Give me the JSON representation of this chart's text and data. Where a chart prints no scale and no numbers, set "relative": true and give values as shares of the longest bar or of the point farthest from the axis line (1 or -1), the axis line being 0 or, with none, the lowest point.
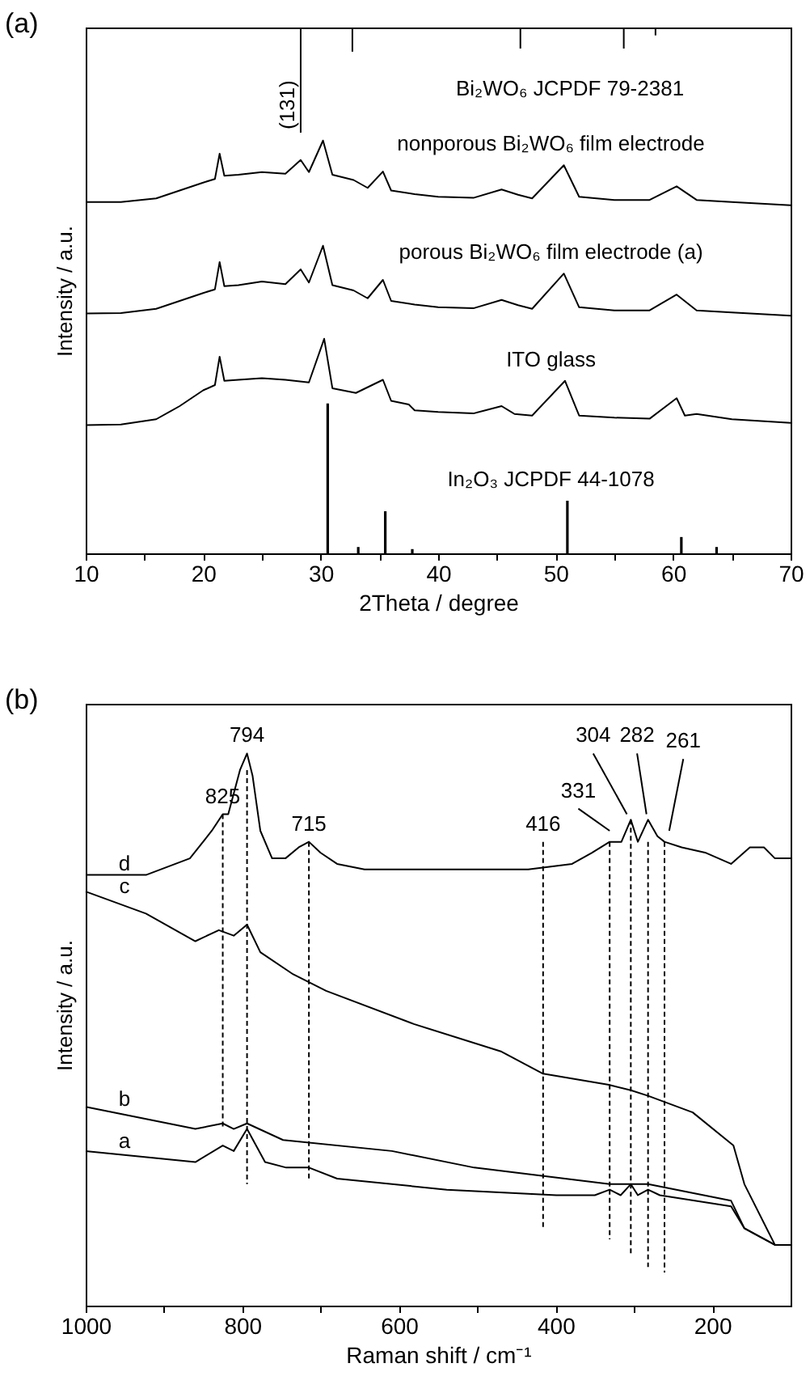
{
  "chart_data": [
    {
      "type": "line",
      "title": "(a)",
      "xlabel": "2Theta / degree",
      "ylabel": "Intensity / a.u.",
      "relative": true,
      "xlim": [
        10,
        70
      ],
      "xticks": [
        10,
        {
          "value": 15,
          "label": null
        },
        20,
        {
          "value": 25,
          "label": null
        },
        30,
        {
          "value": 35,
          "label": null
        },
        40,
        {
          "value": 45,
          "label": null
        },
        50,
        {
          "value": 55,
          "label": null
        },
        60,
        {
          "value": 65,
          "label": null
        },
        70
      ],
      "series": [
        {
          "color": "#000000",
          "x": [
            28.3,
            28.3
          ],
          "values": [
            1,
            0.8
          ]
        },
        {
          "color": "#000000",
          "x": [
            32.7,
            32.7
          ],
          "values": [
            1,
            0.954
          ]
        },
        {
          "color": "#000000",
          "x": [
            47.0,
            47.0
          ],
          "values": [
            1,
            0.96
          ]
        },
        {
          "color": "#000000",
          "x": [
            55.8,
            55.8
          ],
          "values": [
            1,
            0.96
          ]
        },
        {
          "color": "#000000",
          "x": [
            58.5,
            58.5
          ],
          "values": [
            1,
            0.985
          ]
        },
        {
          "name": "nonporous Bi₂WO₆ film electrode",
          "color": "#000000",
          "x": [
            10,
            13,
            16,
            18,
            20,
            21,
            21.4,
            21.8,
            23,
            25,
            27,
            28.3,
            29,
            30.2,
            31,
            32.8,
            34,
            35.3,
            36,
            38,
            40,
            43,
            45.4,
            46.8,
            48,
            50.7,
            52,
            55,
            58,
            60.3,
            62,
            65,
            70
          ],
          "values": [
            0.668,
            0.668,
            0.675,
            0.69,
            0.705,
            0.712,
            0.76,
            0.718,
            0.72,
            0.725,
            0.722,
            0.748,
            0.725,
            0.785,
            0.72,
            0.71,
            0.695,
            0.726,
            0.69,
            0.683,
            0.678,
            0.676,
            0.692,
            0.682,
            0.675,
            0.738,
            0.678,
            0.672,
            0.672,
            0.698,
            0.672,
            0.668,
            0.662
          ]
        },
        {
          "name": "porous Bi₂WO₆ film electrode (a)",
          "color": "#000000",
          "x": [
            10,
            13,
            16,
            18,
            20,
            21,
            21.4,
            21.8,
            23,
            25,
            27,
            28.3,
            29,
            30.2,
            31,
            32.8,
            34,
            35.3,
            36,
            38,
            40,
            43,
            45.4,
            46.8,
            48,
            50.7,
            52,
            55,
            58,
            60.3,
            62,
            65,
            70
          ],
          "values": [
            0.456,
            0.457,
            0.465,
            0.48,
            0.495,
            0.502,
            0.554,
            0.508,
            0.51,
            0.517,
            0.512,
            0.54,
            0.515,
            0.585,
            0.51,
            0.5,
            0.485,
            0.52,
            0.48,
            0.473,
            0.468,
            0.466,
            0.482,
            0.472,
            0.465,
            0.532,
            0.468,
            0.462,
            0.462,
            0.492,
            0.462,
            0.458,
            0.452
          ]
        },
        {
          "name": "ITO glass",
          "color": "#000000",
          "x": [
            10,
            13,
            16,
            18,
            20,
            21,
            21.4,
            21.8,
            23,
            25,
            27,
            29,
            30.3,
            31,
            33,
            35.3,
            36,
            37.5,
            38,
            40,
            43,
            45.4,
            46.5,
            48,
            50.8,
            52,
            55,
            58,
            60.3,
            61,
            62,
            65,
            70
          ],
          "values": [
            0.244,
            0.245,
            0.255,
            0.28,
            0.31,
            0.32,
            0.374,
            0.328,
            0.33,
            0.333,
            0.33,
            0.325,
            0.408,
            0.314,
            0.305,
            0.33,
            0.29,
            0.283,
            0.272,
            0.269,
            0.266,
            0.28,
            0.265,
            0.262,
            0.328,
            0.262,
            0.258,
            0.256,
            0.295,
            0.262,
            0.265,
            0.255,
            0.248
          ]
        },
        {
          "type": "bar",
          "name": "In₂O₃ JCPDF 44-1078",
          "color": "#000000",
          "x": [
            30.6,
            33.2,
            35.5,
            37.8,
            51.0,
            60.7,
            63.7
          ],
          "values": [
            0.285,
            0.012,
            0.08,
            0.008,
            0.1,
            0.031,
            0.012
          ]
        }
      ],
      "annotations": [
        {
          "text": "(131)",
          "x": 28.3,
          "y": 0.8
        },
        "Bi₂WO₆ JCPDF 79-2381"
      ]
    },
    {
      "type": "line",
      "title": "(b)",
      "xlabel": "Raman shift / cm⁻¹",
      "ylabel": "Intensity / a.u.",
      "relative": true,
      "xlim": [
        1000,
        100
      ],
      "xticks": [
        1000,
        {
          "value": 900,
          "label": null
        },
        800,
        {
          "value": 700,
          "label": null
        },
        600,
        {
          "value": 500,
          "label": null
        },
        400,
        {
          "value": 300,
          "label": null
        },
        200
      ],
      "series": [
        {
          "name": "d",
          "color": "#000000",
          "x": [
            1000,
            923,
            867,
            839,
            825,
            818,
            803,
            794,
            787,
            777,
            762,
            745,
            728,
            715,
            700,
            679,
            644,
            539,
            435,
            379,
            354,
            331,
            316,
            304,
            295,
            282,
            270,
            261,
            239,
            208,
            176,
            152,
            134,
            120,
            100
          ],
          "values": [
            0.78,
            0.78,
            0.81,
            0.86,
            0.89,
            0.89,
            0.97,
            1.0,
            0.96,
            0.86,
            0.81,
            0.81,
            0.83,
            0.84,
            0.82,
            0.8,
            0.79,
            0.79,
            0.79,
            0.8,
            0.82,
            0.84,
            0.84,
            0.88,
            0.84,
            0.88,
            0.85,
            0.84,
            0.83,
            0.82,
            0.8,
            0.83,
            0.83,
            0.81,
            0.81
          ]
        },
        {
          "name": "c",
          "color": "#000000",
          "x": [
            1000,
            923,
            860,
            830,
            811,
            794,
            777,
            735,
            693,
            581,
            469,
            416,
            332,
            304,
            282,
            225,
            173,
            159,
            120,
            100
          ],
          "values": [
            0.75,
            0.71,
            0.66,
            0.68,
            0.67,
            0.69,
            0.64,
            0.6,
            0.57,
            0.51,
            0.46,
            0.42,
            0.4,
            0.39,
            0.38,
            0.35,
            0.29,
            0.22,
            0.11,
            0.11
          ]
        },
        {
          "name": "b",
          "color": "#000000",
          "x": [
            1000,
            860,
            825,
            811,
            794,
            748,
            609,
            504,
            331,
            282,
            176,
            159,
            120,
            100
          ],
          "values": [
            0.36,
            0.32,
            0.33,
            0.32,
            0.33,
            0.3,
            0.28,
            0.25,
            0.22,
            0.22,
            0.19,
            0.14,
            0.11,
            0.11
          ]
        },
        {
          "name": "a",
          "color": "#000000",
          "x": [
            1000,
            860,
            825,
            811,
            794,
            771,
            744,
            715,
            679,
            539,
            399,
            350,
            331,
            317,
            304,
            295,
            282,
            267,
            176,
            159,
            120,
            100
          ],
          "values": [
            0.28,
            0.26,
            0.29,
            0.28,
            0.32,
            0.26,
            0.25,
            0.25,
            0.23,
            0.21,
            0.2,
            0.2,
            0.21,
            0.2,
            0.22,
            0.2,
            0.21,
            0.2,
            0.18,
            0.14,
            0.11,
            0.11
          ]
        },
        {
          "line_style": "dashed",
          "color": "#000000",
          "x": [
            825,
            825
          ],
          "values": [
            0.89,
            0.32
          ]
        },
        {
          "line_style": "dashed",
          "color": "#000000",
          "x": [
            794,
            794
          ],
          "values": [
            0.97,
            0.22
          ]
        },
        {
          "line_style": "dashed",
          "color": "#000000",
          "x": [
            715,
            715
          ],
          "values": [
            0.84,
            0.23
          ]
        },
        {
          "line_style": "dashed",
          "color": "#000000",
          "x": [
            416,
            416
          ],
          "values": [
            0.84,
            0.14
          ]
        },
        {
          "line_style": "dashed",
          "color": "#000000",
          "x": [
            331,
            331
          ],
          "values": [
            0.84,
            0.12
          ]
        },
        {
          "line_style": "dashed",
          "color": "#000000",
          "x": [
            304,
            304
          ],
          "values": [
            0.88,
            0.09
          ]
        },
        {
          "line_style": "dashed",
          "color": "#000000",
          "x": [
            282,
            282
          ],
          "values": [
            0.84,
            0.07
          ]
        },
        {
          "line_style": "dashed",
          "color": "#000000",
          "x": [
            261,
            261
          ],
          "values": [
            0.84,
            0.06
          ]
        },
        {
          "color": "#000000",
          "x": [
            371,
            331
          ],
          "values": [
            0.9,
            0.86
          ]
        },
        {
          "color": "#000000",
          "x": [
            352,
            309
          ],
          "values": [
            1.0,
            0.89
          ]
        },
        {
          "color": "#000000",
          "x": [
            296,
            284
          ],
          "values": [
            1.0,
            0.89
          ]
        },
        {
          "color": "#000000",
          "x": [
            237,
            255
          ],
          "values": [
            0.99,
            0.86
          ]
        }
      ],
      "annotations": [
        {
          "text": "825",
          "x": 825,
          "y": 0.89
        },
        {
          "text": "794",
          "x": 794,
          "y": 1.0
        },
        {
          "text": "715",
          "x": 715,
          "y": 0.84
        },
        {
          "text": "416",
          "x": 416,
          "y": 0.84
        },
        {
          "text": "331",
          "x": 371,
          "y": 0.9
        },
        {
          "text": "304",
          "x": 352,
          "y": 1.0
        },
        {
          "text": "282",
          "x": 296,
          "y": 1.0
        },
        {
          "text": "261",
          "x": 237,
          "y": 0.99
        }
      ]
    }
  ]
}
